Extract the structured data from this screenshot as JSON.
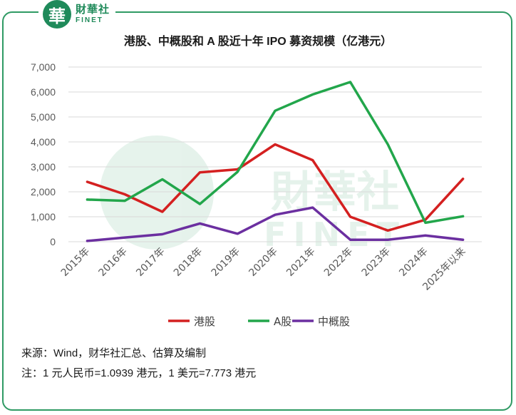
{
  "logo": {
    "cn": "財華社",
    "en": "FINET",
    "glyph": "華"
  },
  "watermark": {
    "cn": "財華社",
    "en": "FINET"
  },
  "colors": {
    "accent": "#2f9a64",
    "grid": "#d9d9d9"
  },
  "chart_data": {
    "type": "line",
    "title": "港股、中概股和 A 股近十年 IPO 募资规模（亿港元）",
    "categories": [
      "2015年",
      "2016年",
      "2017年",
      "2018年",
      "2019年",
      "2020年",
      "2021年",
      "2022年",
      "2023年",
      "2024年",
      "2025年以来"
    ],
    "ylim": [
      0,
      7000
    ],
    "yticks": [
      0,
      1000,
      2000,
      3000,
      4000,
      5000,
      6000,
      7000
    ],
    "ytick_labels": [
      "0",
      "1,000",
      "2,000",
      "3,000",
      "4,000",
      "5,000",
      "6,000",
      "7,000"
    ],
    "grid": true,
    "legend": "bottom",
    "series": [
      {
        "name": "港股",
        "color": "#d42020",
        "values": [
          2400,
          1900,
          1200,
          2780,
          2900,
          3900,
          3270,
          1000,
          450,
          880,
          2520
        ]
      },
      {
        "name": "A股",
        "color": "#22a64b",
        "values": [
          1690,
          1640,
          2500,
          1510,
          2800,
          5250,
          5900,
          6400,
          3900,
          760,
          1020
        ]
      },
      {
        "name": "中概股",
        "color": "#6b2fa0",
        "values": [
          30,
          170,
          300,
          730,
          320,
          1080,
          1370,
          80,
          80,
          250,
          80
        ]
      }
    ]
  },
  "footnotes": {
    "source": "来源：Wind，财华社汇总、估算及编制",
    "note": "注：1 元人民币=1.0939 港元，1 美元=7.773 港元"
  }
}
